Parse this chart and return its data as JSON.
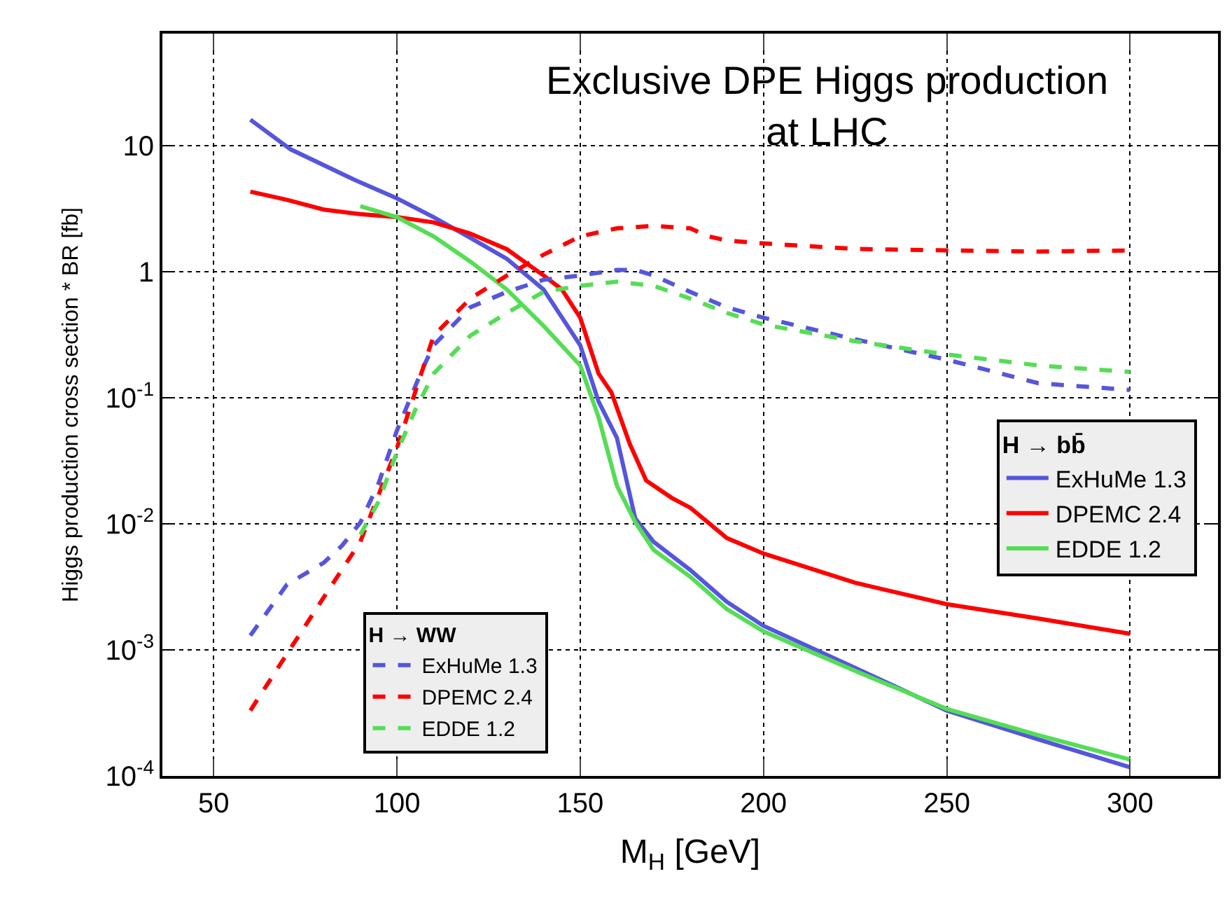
{
  "chart_data": {
    "type": "line",
    "title": "Exclusive DPE Higgs production\nat LHC",
    "xlabel": "M$_{H}$ [GeV]",
    "ylabel": "Higgs production cross section * BR [fb]",
    "legend_title": [
      "H → bb̄",
      "H → WW"
    ],
    "legend": [
      "right",
      "bottom"
    ],
    "log": "y",
    "grid": true,
    "xlim": [
      36,
      324
    ],
    "xticks": [
      50,
      100,
      150,
      200,
      250,
      300
    ],
    "ylim": [
      0.0001,
      77
    ],
    "yticks": [
      {
        "value": 0.0001,
        "label": "10$^{-4}$"
      },
      {
        "value": 0.001,
        "label": "10$^{-3}$"
      },
      {
        "value": 0.01,
        "label": "10$^{-2}$"
      },
      {
        "value": 0.1,
        "label": "10$^{-1}$"
      },
      1,
      10
    ],
    "series": [
      {
        "name": "ExHuMe 1.3",
        "color": "#5555dd",
        "line_style": "solid",
        "x": [
          60,
          71,
          88,
          100,
          110,
          120,
          130,
          140,
          150,
          155,
          160,
          165,
          170,
          180,
          190,
          200,
          225,
          250,
          275,
          300
        ],
        "values": [
          16,
          9.3,
          5.4,
          3.8,
          2.7,
          1.85,
          1.26,
          0.72,
          0.26,
          0.093,
          0.048,
          0.011,
          0.0072,
          0.0043,
          0.0024,
          0.00155,
          0.00072,
          0.00033,
          0.000195,
          0.000117
        ]
      },
      {
        "name": "DPEMC 2.4",
        "color": "#ff0000",
        "line_style": "solid",
        "x": [
          60,
          70,
          80,
          90,
          100,
          110,
          120,
          130,
          140,
          145,
          150,
          155,
          158.5,
          163.5,
          168,
          175,
          180,
          190,
          200,
          225,
          250,
          275,
          300
        ],
        "values": [
          4.3,
          3.7,
          3.1,
          2.85,
          2.7,
          2.45,
          2.0,
          1.5,
          0.93,
          0.72,
          0.43,
          0.155,
          0.11,
          0.043,
          0.022,
          0.016,
          0.0134,
          0.0077,
          0.0058,
          0.0034,
          0.0023,
          0.00177,
          0.00134
        ]
      },
      {
        "name": "EDDE 1.2",
        "color": "#55dd55",
        "line_style": "solid",
        "x": [
          90,
          100,
          110,
          120,
          130,
          140,
          150,
          155,
          160,
          165,
          170,
          180,
          190,
          200,
          225,
          250,
          275,
          300
        ],
        "values": [
          3.3,
          2.7,
          1.9,
          1.2,
          0.72,
          0.37,
          0.18,
          0.07,
          0.02,
          0.0103,
          0.0062,
          0.0038,
          0.0021,
          0.0014,
          0.00068,
          0.00034,
          0.00021,
          0.000135
        ]
      },
      {
        "name": "ExHuMe 1.3",
        "color": "#5555dd",
        "line_style": "dashed",
        "x": [
          60,
          70,
          80,
          85,
          90,
          95,
          100,
          107,
          110,
          120,
          130,
          140,
          150,
          160,
          165,
          170,
          180,
          190,
          200,
          225,
          250,
          275,
          300
        ],
        "values": [
          0.0013,
          0.0033,
          0.0049,
          0.0067,
          0.0102,
          0.021,
          0.055,
          0.17,
          0.26,
          0.52,
          0.69,
          0.86,
          0.93,
          1.03,
          1.03,
          0.93,
          0.69,
          0.52,
          0.43,
          0.29,
          0.2,
          0.13,
          0.115
        ]
      },
      {
        "name": "DPEMC 2.4",
        "color": "#ff0000",
        "line_style": "dashed",
        "x": [
          60,
          70,
          80,
          90,
          95,
          100,
          110,
          120,
          130,
          140,
          150,
          160,
          170,
          180,
          185,
          190,
          200,
          225,
          250,
          275,
          300
        ],
        "values": [
          0.00033,
          0.00093,
          0.0026,
          0.0072,
          0.017,
          0.04,
          0.31,
          0.61,
          0.93,
          1.36,
          1.9,
          2.2,
          2.3,
          2.2,
          1.9,
          1.76,
          1.67,
          1.51,
          1.47,
          1.44,
          1.47
        ]
      },
      {
        "name": "EDDE 1.2",
        "color": "#55dd55",
        "line_style": "dashed",
        "x": [
          90,
          95,
          100,
          105,
          110,
          120,
          130,
          140,
          150,
          160,
          170,
          180,
          190,
          200,
          225,
          250,
          275,
          300
        ],
        "values": [
          0.0082,
          0.015,
          0.037,
          0.08,
          0.155,
          0.31,
          0.47,
          0.69,
          0.77,
          0.83,
          0.77,
          0.61,
          0.47,
          0.38,
          0.28,
          0.22,
          0.18,
          0.16
        ]
      }
    ]
  }
}
